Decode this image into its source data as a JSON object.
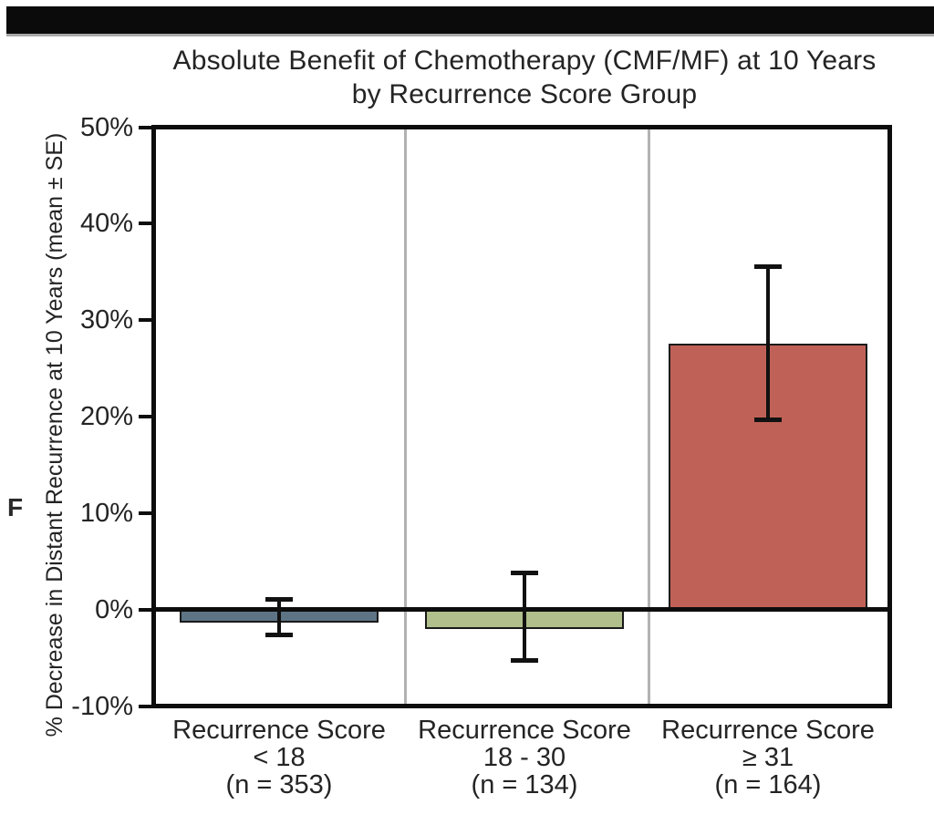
{
  "figure_label": "F",
  "title": {
    "line1": "Absolute Benefit of Chemotherapy (CMF/MF) at 10 Years",
    "line2": "by Recurrence Score Group"
  },
  "chart_data": {
    "type": "bar",
    "title": "Absolute Benefit of Chemotherapy (CMF/MF) at 10 Years by Recurrence Score Group",
    "ylabel": "% Decrease in Distant Recurrence at 10 Years (mean ± SE)",
    "xlabel": "",
    "ylim": [
      -10,
      50
    ],
    "yticks": [
      50,
      40,
      30,
      20,
      10,
      0,
      -10
    ],
    "ytick_suffix": "%",
    "grid": false,
    "legend": "none",
    "zero_baseline": true,
    "panel_dividers": true,
    "categories": [
      [
        "Recurrence Score",
        "< 18",
        "(n = 353)"
      ],
      [
        "Recurrence Score",
        "18 - 30",
        "(n = 134)"
      ],
      [
        "Recurrence Score",
        "≥ 31",
        "(n = 164)"
      ]
    ],
    "values": [
      -1.2,
      -1.8,
      27.6
    ],
    "error_bar_top": [
      1.1,
      3.8,
      35.5
    ],
    "error_bar_bottom": [
      -2.6,
      -5.3,
      19.7
    ],
    "bar_colors": [
      "#5d7485",
      "#b0bf8c",
      "#c06157"
    ],
    "bar_border_color": "#1a1a1a",
    "divider_color": "#b2b2b2",
    "banner_color": "#0b0b0b"
  }
}
